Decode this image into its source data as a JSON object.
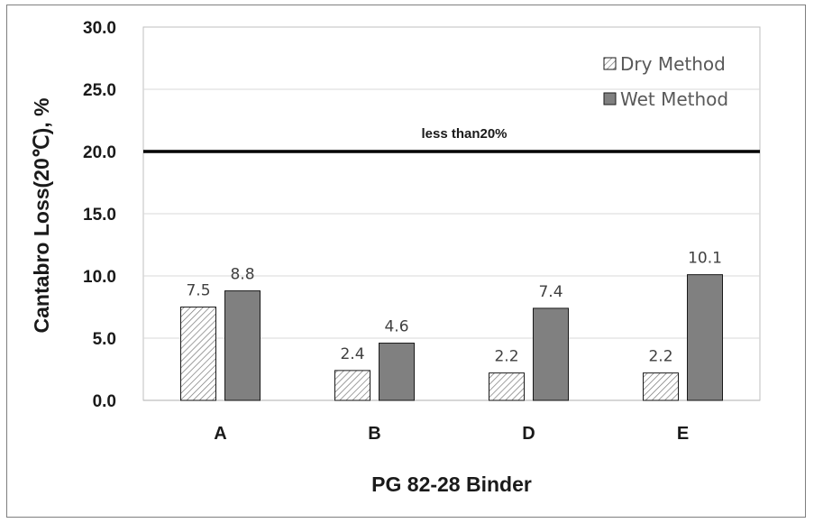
{
  "chart_data": {
    "type": "bar",
    "categories": [
      "A",
      "B",
      "D",
      "E"
    ],
    "series": [
      {
        "name": "Dry Method",
        "values": [
          7.5,
          2.4,
          2.2,
          2.2
        ],
        "labels": [
          "7.5",
          "2.4",
          "2.2",
          "2.2"
        ],
        "fill": "hatched",
        "color": "#595959"
      },
      {
        "name": "Wet Method",
        "values": [
          8.8,
          4.6,
          7.4,
          10.1
        ],
        "labels": [
          "8.8",
          "4.6",
          "7.4",
          "10.1"
        ],
        "fill": "solid",
        "color": "#808080"
      }
    ],
    "xlabel": "PG 82-28 Binder",
    "ylabel": "Cantabro Loss(20℃), %",
    "ylim": [
      0,
      30
    ],
    "yticks": [
      0,
      5,
      10,
      15,
      20,
      25,
      30
    ],
    "ytick_labels": [
      "0.0",
      "5.0",
      "10.0",
      "15.0",
      "20.0",
      "25.0",
      "30.0"
    ],
    "grid": true,
    "legend_position": "top-right",
    "reference_line": {
      "value": 20,
      "label": "less than20%",
      "color": "#000000"
    }
  }
}
